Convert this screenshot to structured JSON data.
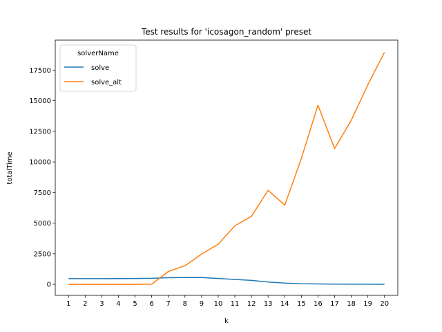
{
  "chart_data": {
    "type": "line",
    "title": "Test results for 'icosagon_random' preset",
    "xlabel": "k",
    "ylabel": "totalTime",
    "x": [
      1,
      2,
      3,
      4,
      5,
      6,
      7,
      8,
      9,
      10,
      11,
      12,
      13,
      14,
      15,
      16,
      17,
      18,
      19,
      20
    ],
    "xticks": [
      "1",
      "2",
      "3",
      "4",
      "5",
      "6",
      "7",
      "8",
      "9",
      "10",
      "11",
      "12",
      "13",
      "14",
      "15",
      "16",
      "17",
      "18",
      "19",
      "20"
    ],
    "yticks": [
      "0",
      "2500",
      "5000",
      "7500",
      "10000",
      "12500",
      "15000",
      "17500"
    ],
    "ytick_values": [
      0,
      2500,
      5000,
      7500,
      10000,
      12500,
      15000,
      17500
    ],
    "ylim": [
      -900,
      19950
    ],
    "xlim": [
      0.2,
      20.8
    ],
    "grid": false,
    "legend": {
      "title": "solverName",
      "placement": "top-left"
    },
    "series": [
      {
        "name": "solve",
        "color": "#1f77b4",
        "values": [
          460,
          460,
          460,
          470,
          480,
          490,
          540,
          560,
          550,
          480,
          400,
          320,
          190,
          100,
          50,
          30,
          15,
          10,
          8,
          5
        ]
      },
      {
        "name": "solve_alt",
        "color": "#ff7f0e",
        "values": [
          0,
          0,
          0,
          0,
          0,
          10,
          1050,
          1520,
          2470,
          3280,
          4780,
          5560,
          7680,
          6470,
          10270,
          14640,
          11090,
          13400,
          16310,
          18950
        ]
      }
    ]
  }
}
